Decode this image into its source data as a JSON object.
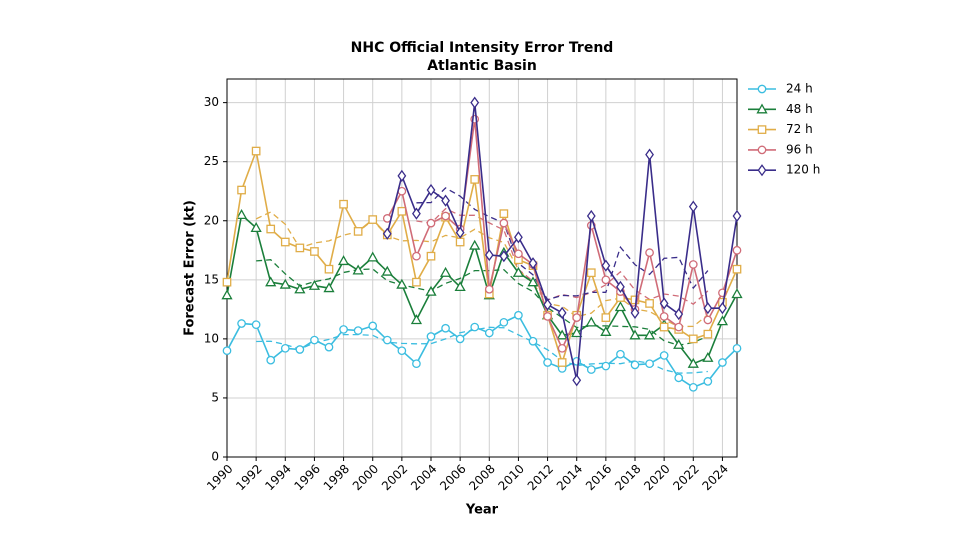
{
  "chart_data": {
    "type": "line",
    "title": "NHC Official Intensity Error Trend",
    "subtitle": "Atlantic Basin",
    "xlabel": "Year",
    "ylabel": "Forecast Error (kt)",
    "x": [
      1990,
      1991,
      1992,
      1993,
      1994,
      1995,
      1996,
      1997,
      1998,
      1999,
      2000,
      2001,
      2002,
      2003,
      2004,
      2005,
      2006,
      2007,
      2008,
      2009,
      2010,
      2011,
      2012,
      2013,
      2014,
      2015,
      2016,
      2017,
      2018,
      2019,
      2020,
      2021,
      2022,
      2023,
      2024,
      2025
    ],
    "xlim": [
      1990,
      2025
    ],
    "xticks": [
      1990,
      1992,
      1994,
      1996,
      1998,
      2000,
      2002,
      2004,
      2006,
      2008,
      2010,
      2012,
      2014,
      2016,
      2018,
      2020,
      2022,
      2024
    ],
    "ylim": [
      0,
      32
    ],
    "yticks": [
      0,
      5,
      10,
      15,
      20,
      25,
      30
    ],
    "grid": true,
    "legend": "outside-right",
    "series": [
      {
        "name": "24 h",
        "color": "#3bbde0",
        "marker": "circle",
        "values": [
          9.0,
          11.3,
          11.2,
          8.2,
          9.2,
          9.1,
          9.9,
          9.3,
          10.8,
          10.7,
          11.1,
          9.9,
          9.0,
          7.9,
          10.2,
          10.9,
          10.0,
          11.0,
          10.5,
          11.4,
          12.0,
          9.8,
          8.0,
          7.5,
          8.1,
          7.4,
          7.7,
          8.7,
          7.8,
          7.9,
          8.6,
          6.7,
          5.9,
          6.4,
          8.0,
          9.2
        ]
      },
      {
        "name": "48 h",
        "color": "#1b7f3b",
        "marker": "triangle",
        "values": [
          13.7,
          20.5,
          19.4,
          14.8,
          14.6,
          14.2,
          14.5,
          14.3,
          16.6,
          15.8,
          16.9,
          15.7,
          14.6,
          11.6,
          14.0,
          15.6,
          14.4,
          17.9,
          13.7,
          17.3,
          15.6,
          14.8,
          12.0,
          10.3,
          10.5,
          11.4,
          10.6,
          12.7,
          10.3,
          10.3,
          11.2,
          9.5,
          7.9,
          8.4,
          11.5,
          13.8
        ]
      },
      {
        "name": "72 h",
        "color": "#e0ad48",
        "marker": "square",
        "values": [
          14.8,
          22.6,
          25.9,
          19.3,
          18.2,
          17.7,
          17.4,
          15.9,
          21.4,
          19.1,
          20.1,
          18.8,
          20.8,
          14.8,
          17.0,
          20.3,
          18.2,
          23.5,
          13.8,
          20.6,
          16.7,
          16.2,
          12.0,
          8.0,
          12.0,
          15.6,
          11.8,
          13.5,
          13.3,
          13.0,
          11.0,
          10.8,
          10.0,
          10.4,
          13.1,
          15.9
        ]
      },
      {
        "name": "96 h",
        "color": "#d06c78",
        "marker": "circle",
        "values": [
          null,
          null,
          null,
          null,
          null,
          null,
          null,
          null,
          null,
          null,
          null,
          20.2,
          22.5,
          17.0,
          19.8,
          20.4,
          19.3,
          28.6,
          14.2,
          19.8,
          17.2,
          16.3,
          11.9,
          9.2,
          11.8,
          19.6,
          15.0,
          14.0,
          12.5,
          17.3,
          11.9,
          11.0,
          16.3,
          11.6,
          13.9,
          17.5
        ]
      },
      {
        "name": "120 h",
        "color": "#3a2d8a",
        "marker": "diamond",
        "values": [
          null,
          null,
          null,
          null,
          null,
          null,
          null,
          null,
          null,
          null,
          null,
          18.9,
          23.8,
          20.6,
          22.6,
          21.7,
          19.0,
          30.0,
          17.1,
          17.0,
          18.6,
          16.4,
          12.9,
          12.2,
          6.5,
          20.4,
          16.2,
          14.4,
          12.2,
          25.6,
          13.0,
          12.1,
          21.2,
          12.6,
          12.6,
          20.4
        ]
      },
      {
        "color": "#3bbde0",
        "line_style": "dashed",
        "values": [
          null,
          null,
          9.78,
          9.8,
          9.52,
          9.14,
          9.66,
          9.96,
          10.36,
          10.36,
          10.3,
          9.72,
          9.62,
          9.58,
          9.6,
          10.0,
          10.52,
          10.76,
          10.98,
          10.94,
          10.34,
          9.74,
          9.08,
          8.16,
          7.74,
          7.88,
          7.94,
          7.9,
          8.14,
          7.94,
          7.38,
          7.1,
          7.12,
          7.24,
          null,
          null
        ]
      },
      {
        "color": "#1b7f3b",
        "line_style": "dashed",
        "values": [
          null,
          null,
          16.6,
          16.7,
          15.5,
          14.48,
          14.84,
          15.08,
          15.62,
          15.86,
          15.92,
          14.92,
          14.56,
          14.3,
          14.04,
          14.7,
          15.12,
          15.78,
          15.78,
          15.86,
          14.68,
          14.0,
          12.64,
          11.8,
          10.96,
          11.1,
          11.1,
          11.06,
          11.02,
          10.8,
          9.84,
          9.46,
          9.7,
          10.22,
          null,
          null
        ]
      },
      {
        "color": "#e0ad48",
        "line_style": "dashed",
        "values": [
          null,
          null,
          20.16,
          20.74,
          19.7,
          17.7,
          18.12,
          18.3,
          18.78,
          19.06,
          20.04,
          18.72,
          18.3,
          18.34,
          18.22,
          18.76,
          18.56,
          19.28,
          18.56,
          18.16,
          15.86,
          14.7,
          12.98,
          12.76,
          11.88,
          12.18,
          13.24,
          13.44,
          12.52,
          12.32,
          11.62,
          11.04,
          11.06,
          12.04,
          null,
          null
        ]
      },
      {
        "color": "#d06c78",
        "line_style": "dashed",
        "values": [
          null,
          null,
          null,
          null,
          null,
          null,
          null,
          null,
          null,
          null,
          null,
          null,
          null,
          19.98,
          19.8,
          21.02,
          20.46,
          20.46,
          19.82,
          19.22,
          15.88,
          14.88,
          13.28,
          13.76,
          13.5,
          13.92,
          14.58,
          15.68,
          14.14,
          13.34,
          13.8,
          13.62,
          12.94,
          14.06,
          null,
          null
        ]
      },
      {
        "color": "#3a2d8a",
        "line_style": "dashed",
        "values": [
          null,
          null,
          null,
          null,
          null,
          null,
          null,
          null,
          null,
          null,
          null,
          null,
          null,
          21.52,
          21.54,
          22.78,
          22.08,
          20.96,
          20.34,
          19.82,
          16.4,
          15.42,
          13.32,
          13.68,
          13.64,
          13.94,
          13.94,
          17.76,
          16.28,
          15.46,
          16.82,
          16.9,
          14.3,
          15.78,
          null,
          null
        ]
      }
    ]
  }
}
